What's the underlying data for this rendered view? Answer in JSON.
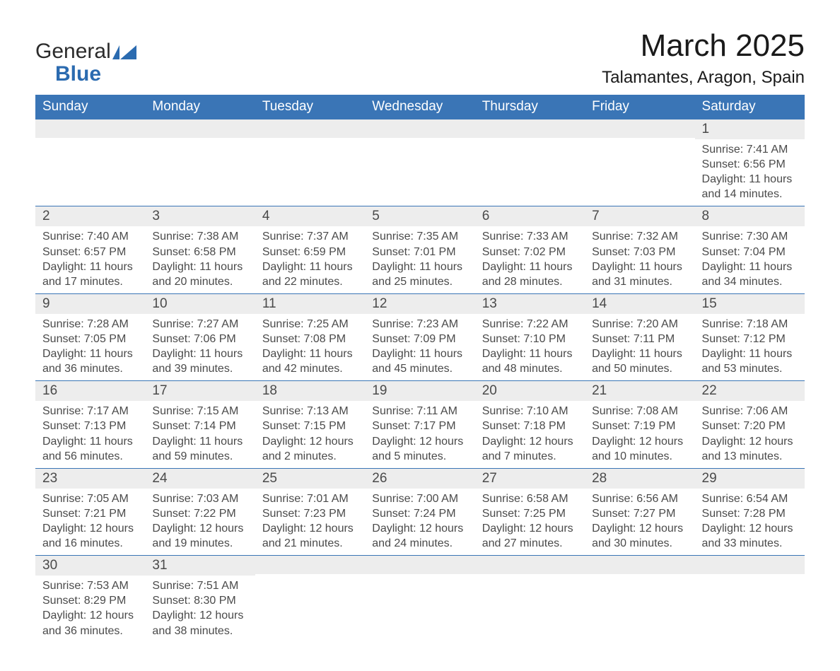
{
  "logo": {
    "text1": "General",
    "text2": "Blue"
  },
  "title": "March 2025",
  "location": "Talamantes, Aragon, Spain",
  "columns": [
    "Sunday",
    "Monday",
    "Tuesday",
    "Wednesday",
    "Thursday",
    "Friday",
    "Saturday"
  ],
  "colors": {
    "header_bg": "#3a75b6",
    "header_text": "#ffffff",
    "daynum_bg": "#ededed",
    "row_border": "#3a75b6",
    "text": "#4a4a4a",
    "logo_blue": "#2b6bb0"
  },
  "weeks": [
    [
      {
        "n": "",
        "lines": [
          "",
          "",
          "",
          ""
        ]
      },
      {
        "n": "",
        "lines": [
          "",
          "",
          "",
          ""
        ]
      },
      {
        "n": "",
        "lines": [
          "",
          "",
          "",
          ""
        ]
      },
      {
        "n": "",
        "lines": [
          "",
          "",
          "",
          ""
        ]
      },
      {
        "n": "",
        "lines": [
          "",
          "",
          "",
          ""
        ]
      },
      {
        "n": "",
        "lines": [
          "",
          "",
          "",
          ""
        ]
      },
      {
        "n": "1",
        "lines": [
          "Sunrise: 7:41 AM",
          "Sunset: 6:56 PM",
          "Daylight: 11 hours",
          "and 14 minutes."
        ]
      }
    ],
    [
      {
        "n": "2",
        "lines": [
          "Sunrise: 7:40 AM",
          "Sunset: 6:57 PM",
          "Daylight: 11 hours",
          "and 17 minutes."
        ]
      },
      {
        "n": "3",
        "lines": [
          "Sunrise: 7:38 AM",
          "Sunset: 6:58 PM",
          "Daylight: 11 hours",
          "and 20 minutes."
        ]
      },
      {
        "n": "4",
        "lines": [
          "Sunrise: 7:37 AM",
          "Sunset: 6:59 PM",
          "Daylight: 11 hours",
          "and 22 minutes."
        ]
      },
      {
        "n": "5",
        "lines": [
          "Sunrise: 7:35 AM",
          "Sunset: 7:01 PM",
          "Daylight: 11 hours",
          "and 25 minutes."
        ]
      },
      {
        "n": "6",
        "lines": [
          "Sunrise: 7:33 AM",
          "Sunset: 7:02 PM",
          "Daylight: 11 hours",
          "and 28 minutes."
        ]
      },
      {
        "n": "7",
        "lines": [
          "Sunrise: 7:32 AM",
          "Sunset: 7:03 PM",
          "Daylight: 11 hours",
          "and 31 minutes."
        ]
      },
      {
        "n": "8",
        "lines": [
          "Sunrise: 7:30 AM",
          "Sunset: 7:04 PM",
          "Daylight: 11 hours",
          "and 34 minutes."
        ]
      }
    ],
    [
      {
        "n": "9",
        "lines": [
          "Sunrise: 7:28 AM",
          "Sunset: 7:05 PM",
          "Daylight: 11 hours",
          "and 36 minutes."
        ]
      },
      {
        "n": "10",
        "lines": [
          "Sunrise: 7:27 AM",
          "Sunset: 7:06 PM",
          "Daylight: 11 hours",
          "and 39 minutes."
        ]
      },
      {
        "n": "11",
        "lines": [
          "Sunrise: 7:25 AM",
          "Sunset: 7:08 PM",
          "Daylight: 11 hours",
          "and 42 minutes."
        ]
      },
      {
        "n": "12",
        "lines": [
          "Sunrise: 7:23 AM",
          "Sunset: 7:09 PM",
          "Daylight: 11 hours",
          "and 45 minutes."
        ]
      },
      {
        "n": "13",
        "lines": [
          "Sunrise: 7:22 AM",
          "Sunset: 7:10 PM",
          "Daylight: 11 hours",
          "and 48 minutes."
        ]
      },
      {
        "n": "14",
        "lines": [
          "Sunrise: 7:20 AM",
          "Sunset: 7:11 PM",
          "Daylight: 11 hours",
          "and 50 minutes."
        ]
      },
      {
        "n": "15",
        "lines": [
          "Sunrise: 7:18 AM",
          "Sunset: 7:12 PM",
          "Daylight: 11 hours",
          "and 53 minutes."
        ]
      }
    ],
    [
      {
        "n": "16",
        "lines": [
          "Sunrise: 7:17 AM",
          "Sunset: 7:13 PM",
          "Daylight: 11 hours",
          "and 56 minutes."
        ]
      },
      {
        "n": "17",
        "lines": [
          "Sunrise: 7:15 AM",
          "Sunset: 7:14 PM",
          "Daylight: 11 hours",
          "and 59 minutes."
        ]
      },
      {
        "n": "18",
        "lines": [
          "Sunrise: 7:13 AM",
          "Sunset: 7:15 PM",
          "Daylight: 12 hours",
          "and 2 minutes."
        ]
      },
      {
        "n": "19",
        "lines": [
          "Sunrise: 7:11 AM",
          "Sunset: 7:17 PM",
          "Daylight: 12 hours",
          "and 5 minutes."
        ]
      },
      {
        "n": "20",
        "lines": [
          "Sunrise: 7:10 AM",
          "Sunset: 7:18 PM",
          "Daylight: 12 hours",
          "and 7 minutes."
        ]
      },
      {
        "n": "21",
        "lines": [
          "Sunrise: 7:08 AM",
          "Sunset: 7:19 PM",
          "Daylight: 12 hours",
          "and 10 minutes."
        ]
      },
      {
        "n": "22",
        "lines": [
          "Sunrise: 7:06 AM",
          "Sunset: 7:20 PM",
          "Daylight: 12 hours",
          "and 13 minutes."
        ]
      }
    ],
    [
      {
        "n": "23",
        "lines": [
          "Sunrise: 7:05 AM",
          "Sunset: 7:21 PM",
          "Daylight: 12 hours",
          "and 16 minutes."
        ]
      },
      {
        "n": "24",
        "lines": [
          "Sunrise: 7:03 AM",
          "Sunset: 7:22 PM",
          "Daylight: 12 hours",
          "and 19 minutes."
        ]
      },
      {
        "n": "25",
        "lines": [
          "Sunrise: 7:01 AM",
          "Sunset: 7:23 PM",
          "Daylight: 12 hours",
          "and 21 minutes."
        ]
      },
      {
        "n": "26",
        "lines": [
          "Sunrise: 7:00 AM",
          "Sunset: 7:24 PM",
          "Daylight: 12 hours",
          "and 24 minutes."
        ]
      },
      {
        "n": "27",
        "lines": [
          "Sunrise: 6:58 AM",
          "Sunset: 7:25 PM",
          "Daylight: 12 hours",
          "and 27 minutes."
        ]
      },
      {
        "n": "28",
        "lines": [
          "Sunrise: 6:56 AM",
          "Sunset: 7:27 PM",
          "Daylight: 12 hours",
          "and 30 minutes."
        ]
      },
      {
        "n": "29",
        "lines": [
          "Sunrise: 6:54 AM",
          "Sunset: 7:28 PM",
          "Daylight: 12 hours",
          "and 33 minutes."
        ]
      }
    ],
    [
      {
        "n": "30",
        "lines": [
          "Sunrise: 7:53 AM",
          "Sunset: 8:29 PM",
          "Daylight: 12 hours",
          "and 36 minutes."
        ]
      },
      {
        "n": "31",
        "lines": [
          "Sunrise: 7:51 AM",
          "Sunset: 8:30 PM",
          "Daylight: 12 hours",
          "and 38 minutes."
        ]
      },
      {
        "n": "",
        "lines": [
          "",
          "",
          "",
          ""
        ]
      },
      {
        "n": "",
        "lines": [
          "",
          "",
          "",
          ""
        ]
      },
      {
        "n": "",
        "lines": [
          "",
          "",
          "",
          ""
        ]
      },
      {
        "n": "",
        "lines": [
          "",
          "",
          "",
          ""
        ]
      },
      {
        "n": "",
        "lines": [
          "",
          "",
          "",
          ""
        ]
      }
    ]
  ]
}
